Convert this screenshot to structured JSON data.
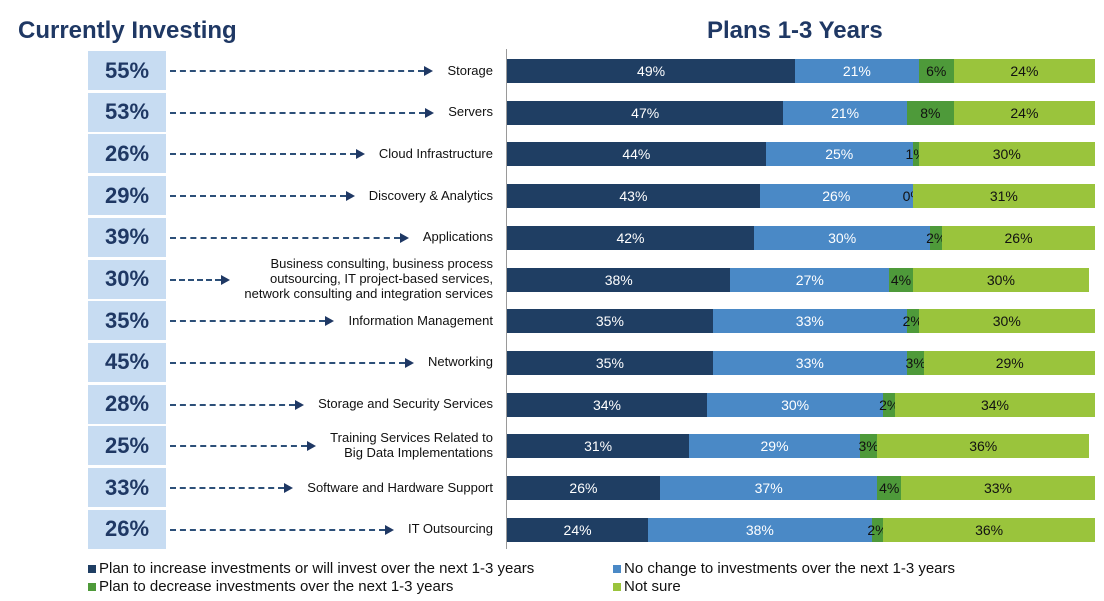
{
  "header": {
    "left_title": "Currently Investing",
    "right_title": "Plans 1-3 Years"
  },
  "chart_data": {
    "type": "bar",
    "orientation": "horizontal",
    "stacked": true,
    "title": "Plans 1-3 Years",
    "categories": [
      "Storage",
      "Servers",
      "Cloud Infrastructure",
      "Discovery & Analytics",
      "Applications",
      "Business consulting, business process\noutsourcing, IT project-based services,\nnetwork consulting and integration services",
      "Information Management",
      "Networking",
      "Storage and Security Services",
      "Training Services Related to\nBig Data Implementations",
      "Software and Hardware Support",
      "IT Outsourcing"
    ],
    "currently_investing": [
      "55%",
      "53%",
      "26%",
      "29%",
      "39%",
      "30%",
      "35%",
      "45%",
      "28%",
      "25%",
      "33%",
      "26%"
    ],
    "series": [
      {
        "name": "Plan to increase investments or will invest over the next 1-3 years",
        "color": "#1f3e63",
        "values": [
          49,
          47,
          44,
          43,
          42,
          38,
          35,
          35,
          34,
          31,
          26,
          24
        ]
      },
      {
        "name": "No change to investments over the next 1-3 years",
        "color": "#4a89c6",
        "values": [
          21,
          21,
          25,
          26,
          30,
          27,
          33,
          33,
          30,
          29,
          37,
          38
        ]
      },
      {
        "name": "Plan to decrease investments over the next 1-3 years",
        "color": "#4e9a3a",
        "values": [
          6,
          8,
          1,
          0,
          2,
          4,
          2,
          3,
          2,
          3,
          4,
          2
        ]
      },
      {
        "name": "Not sure",
        "color": "#9ac43c",
        "values": [
          24,
          24,
          30,
          31,
          26,
          30,
          30,
          29,
          34,
          36,
          33,
          36
        ]
      }
    ],
    "value_suffix": "%",
    "legend_position": "bottom"
  }
}
